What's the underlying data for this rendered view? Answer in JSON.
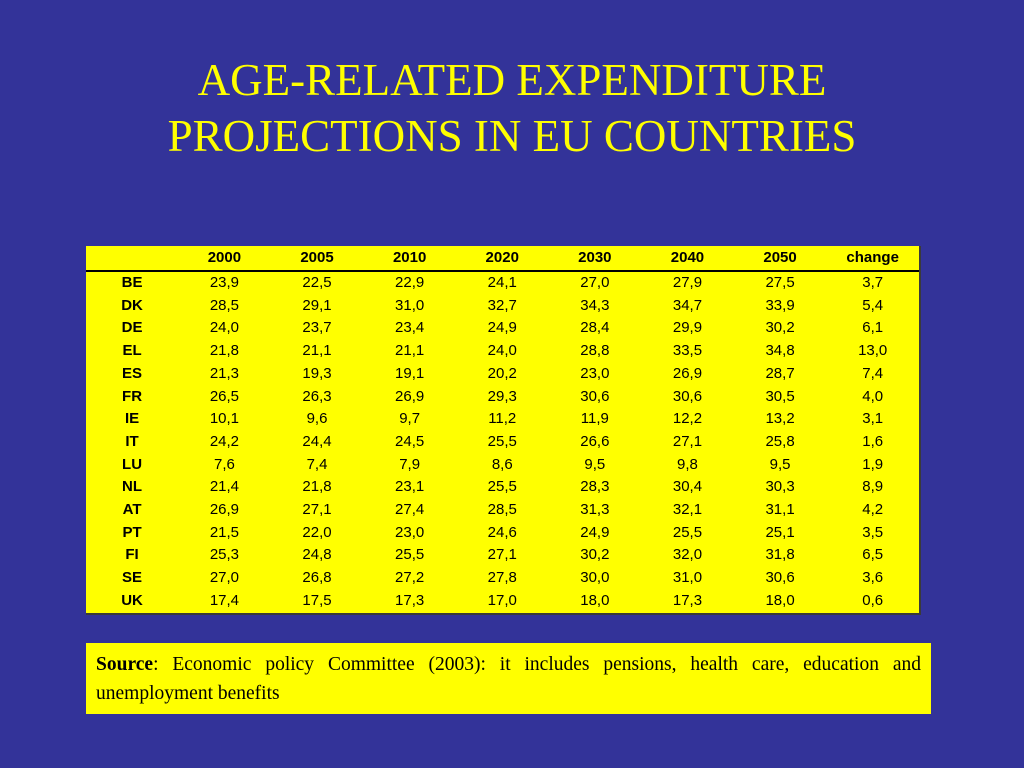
{
  "slide": {
    "title_line1": "AGE-RELATED EXPENDITURE",
    "title_line2": "PROJECTIONS IN EU COUNTRIES",
    "colors": {
      "background": "#333399",
      "title": "#ffff00",
      "panel": "#ffff00",
      "text": "#000000"
    }
  },
  "table": {
    "headers": [
      "",
      "2000",
      "2005",
      "2010",
      "2020",
      "2030",
      "2040",
      "2050",
      "change"
    ],
    "rows": [
      [
        "BE",
        "23,9",
        "22,5",
        "22,9",
        "24,1",
        "27,0",
        "27,9",
        "27,5",
        "3,7"
      ],
      [
        "DK",
        "28,5",
        "29,1",
        "31,0",
        "32,7",
        "34,3",
        "34,7",
        "33,9",
        "5,4"
      ],
      [
        "DE",
        "24,0",
        "23,7",
        "23,4",
        "24,9",
        "28,4",
        "29,9",
        "30,2",
        "6,1"
      ],
      [
        "EL",
        "21,8",
        "21,1",
        "21,1",
        "24,0",
        "28,8",
        "33,5",
        "34,8",
        "13,0"
      ],
      [
        "ES",
        "21,3",
        "19,3",
        "19,1",
        "20,2",
        "23,0",
        "26,9",
        "28,7",
        "7,4"
      ],
      [
        "FR",
        "26,5",
        "26,3",
        "26,9",
        "29,3",
        "30,6",
        "30,6",
        "30,5",
        "4,0"
      ],
      [
        "IE",
        "10,1",
        "9,6",
        "9,7",
        "11,2",
        "11,9",
        "12,2",
        "13,2",
        "3,1"
      ],
      [
        "IT",
        "24,2",
        "24,4",
        "24,5",
        "25,5",
        "26,6",
        "27,1",
        "25,8",
        "1,6"
      ],
      [
        "LU",
        "7,6",
        "7,4",
        "7,9",
        "8,6",
        "9,5",
        "9,8",
        "9,5",
        "1,9"
      ],
      [
        "NL",
        "21,4",
        "21,8",
        "23,1",
        "25,5",
        "28,3",
        "30,4",
        "30,3",
        "8,9"
      ],
      [
        "AT",
        "26,9",
        "27,1",
        "27,4",
        "28,5",
        "31,3",
        "32,1",
        "31,1",
        "4,2"
      ],
      [
        "PT",
        "21,5",
        "22,0",
        "23,0",
        "24,6",
        "24,9",
        "25,5",
        "25,1",
        "3,5"
      ],
      [
        "FI",
        "25,3",
        "24,8",
        "25,5",
        "27,1",
        "30,2",
        "32,0",
        "31,8",
        "6,5"
      ],
      [
        "SE",
        "27,0",
        "26,8",
        "27,2",
        "27,8",
        "30,0",
        "31,0",
        "30,6",
        "3,6"
      ],
      [
        "UK",
        "17,4",
        "17,5",
        "17,3",
        "17,0",
        "18,0",
        "17,3",
        "18,0",
        "0,6"
      ]
    ]
  },
  "source": {
    "label": "Source",
    "text": ": Economic policy Committee (2003): it includes pensions, health care, education and unemployment benefits"
  }
}
